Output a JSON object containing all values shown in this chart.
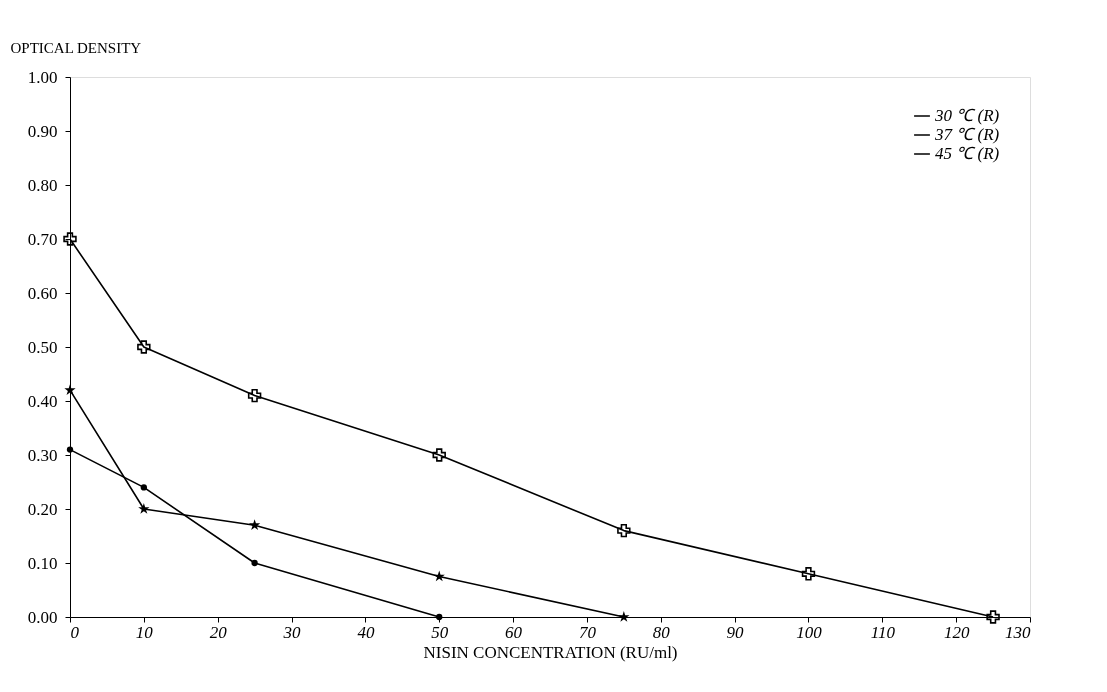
{
  "chart_data": {
    "type": "line",
    "xlabel": "NISIN CONCENTRATION (RU/ml)",
    "ylabel": "OPTICAL DENSITY",
    "xlim": [
      0,
      130
    ],
    "xticks": [
      0,
      10,
      20,
      30,
      40,
      50,
      60,
      70,
      80,
      90,
      100,
      110,
      120,
      130
    ],
    "ylim": [
      0,
      1
    ],
    "yticks": [
      {
        "value": 0,
        "label": "0.00"
      },
      {
        "value": 0.1,
        "label": "0.10"
      },
      {
        "value": 0.2,
        "label": "0.20"
      },
      {
        "value": 0.3,
        "label": "0.30"
      },
      {
        "value": 0.4,
        "label": "0.40"
      },
      {
        "value": 0.5,
        "label": "0.50"
      },
      {
        "value": 0.6,
        "label": "0.60"
      },
      {
        "value": 0.7,
        "label": "0.70"
      },
      {
        "value": 0.8,
        "label": "0.80"
      },
      {
        "value": 0.9,
        "label": "0.90"
      },
      {
        "value": 1,
        "label": "1.00"
      }
    ],
    "grid": false,
    "legend": "top right",
    "line_style": "solid",
    "series": [
      {
        "name": "30 ℃ (R)",
        "color": "#000000",
        "marker": "circle",
        "x": [
          0,
          10,
          25,
          50
        ],
        "values": [
          0.31,
          0.24,
          0.1,
          0
        ]
      },
      {
        "name": "37 ℃ (R)",
        "color": "#000000",
        "marker": "cross",
        "x": [
          0,
          10,
          25,
          50,
          75,
          100,
          125
        ],
        "values": [
          0.7,
          0.5,
          0.41,
          0.3,
          0.16,
          0.08,
          0
        ]
      },
      {
        "name": "45 ℃ (R)",
        "color": "#000000",
        "marker": "star",
        "x": [
          0,
          10,
          25,
          50,
          75
        ],
        "values": [
          0.42,
          0.2,
          0.17,
          0.075,
          0
        ]
      }
    ]
  }
}
